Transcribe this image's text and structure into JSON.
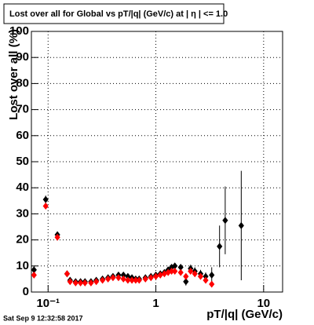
{
  "chart_data": {
    "type": "scatter",
    "title": "Lost over all for Global vs pT/|q| (GeV/c) at |  η | <= 1.0",
    "x_label": "pT/|q| (GeV/c)",
    "y_label": "Lost over all (%)",
    "footer": "Sat Sep  9 12:32:58 2017",
    "log_x": true,
    "grid": true,
    "xlim": [
      0.07,
      15
    ],
    "ylim": [
      0,
      100
    ],
    "xticks": [
      {
        "value": 0.1,
        "label": "10⁻¹"
      },
      1,
      10
    ],
    "yticks": [
      0,
      10,
      20,
      30,
      40,
      50,
      60,
      70,
      80,
      90,
      100
    ],
    "x": [
      0.074,
      0.095,
      0.122,
      0.15,
      0.16,
      0.18,
      0.2,
      0.22,
      0.25,
      0.28,
      0.32,
      0.36,
      0.4,
      0.45,
      0.5,
      0.55,
      0.6,
      0.65,
      0.7,
      0.8,
      0.9,
      1.0,
      1.1,
      1.2,
      1.3,
      1.4,
      1.5,
      1.7,
      1.9,
      2.1,
      2.3,
      2.6,
      2.9,
      3.3,
      3.9,
      4.4,
      6.2
    ],
    "series": [
      {
        "color": "#000000",
        "values": [
          8.5,
          35.5,
          22,
          7,
          4.5,
          4,
          4,
          4,
          4,
          4.5,
          5,
          5.5,
          6,
          6.5,
          6.5,
          6,
          5.5,
          5,
          5,
          5.5,
          6,
          6.5,
          7,
          7.5,
          8.5,
          9.5,
          10,
          9.5,
          4,
          9,
          8,
          7,
          6,
          6.5,
          17.5,
          27.5,
          25.5
        ],
        "errors": [
          1.5,
          1.5,
          1,
          1,
          0.8,
          0.8,
          0.8,
          0.8,
          0.8,
          0.8,
          0.8,
          0.8,
          0.8,
          0.8,
          0.8,
          0.8,
          0.8,
          0.8,
          0.8,
          0.8,
          0.8,
          0.8,
          0.8,
          1,
          1,
          1,
          1,
          1,
          1.5,
          1.5,
          1.5,
          1.5,
          1.5,
          3,
          8,
          13,
          21
        ]
      },
      {
        "color": "#ff0000",
        "values": [
          6.5,
          33,
          21,
          7,
          4,
          3.5,
          3.5,
          3.5,
          3.5,
          4,
          4.5,
          5,
          5.5,
          5.5,
          5,
          4.5,
          4.5,
          4.5,
          4.5,
          5,
          5.5,
          6,
          6.5,
          7,
          7.5,
          8,
          8,
          7.5,
          6,
          8,
          7,
          6,
          4.5,
          3,
          null,
          null,
          null
        ]
      }
    ]
  }
}
